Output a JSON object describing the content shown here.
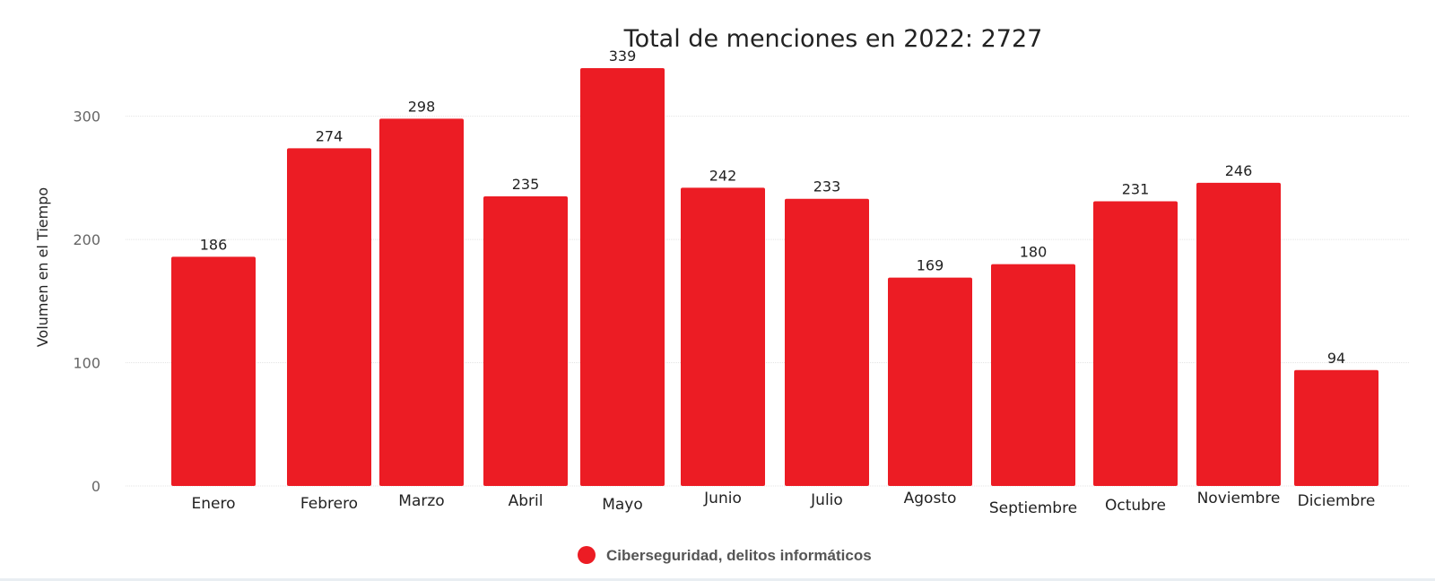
{
  "chart_data": {
    "type": "bar",
    "title": "Total de menciones en 2022: 2727",
    "xlabel": "",
    "ylabel": "Volumen en el Tiempo",
    "categories": [
      "Enero",
      "Febrero",
      "Marzo",
      "Abril",
      "Mayo",
      "Junio",
      "Julio",
      "Agosto",
      "Septiembre",
      "Octubre",
      "Noviembre",
      "Diciembre"
    ],
    "series": [
      {
        "name": "Ciberseguridad, delitos informáticos",
        "color": "#ec1c24",
        "values": [
          186,
          274,
          298,
          235,
          339,
          242,
          233,
          169,
          180,
          231,
          246,
          94
        ]
      }
    ],
    "ylim": [
      0,
      339
    ],
    "yticks": [
      0,
      100,
      200,
      300
    ],
    "grid": true,
    "legend_position": "bottom-center",
    "data_labels": true
  }
}
